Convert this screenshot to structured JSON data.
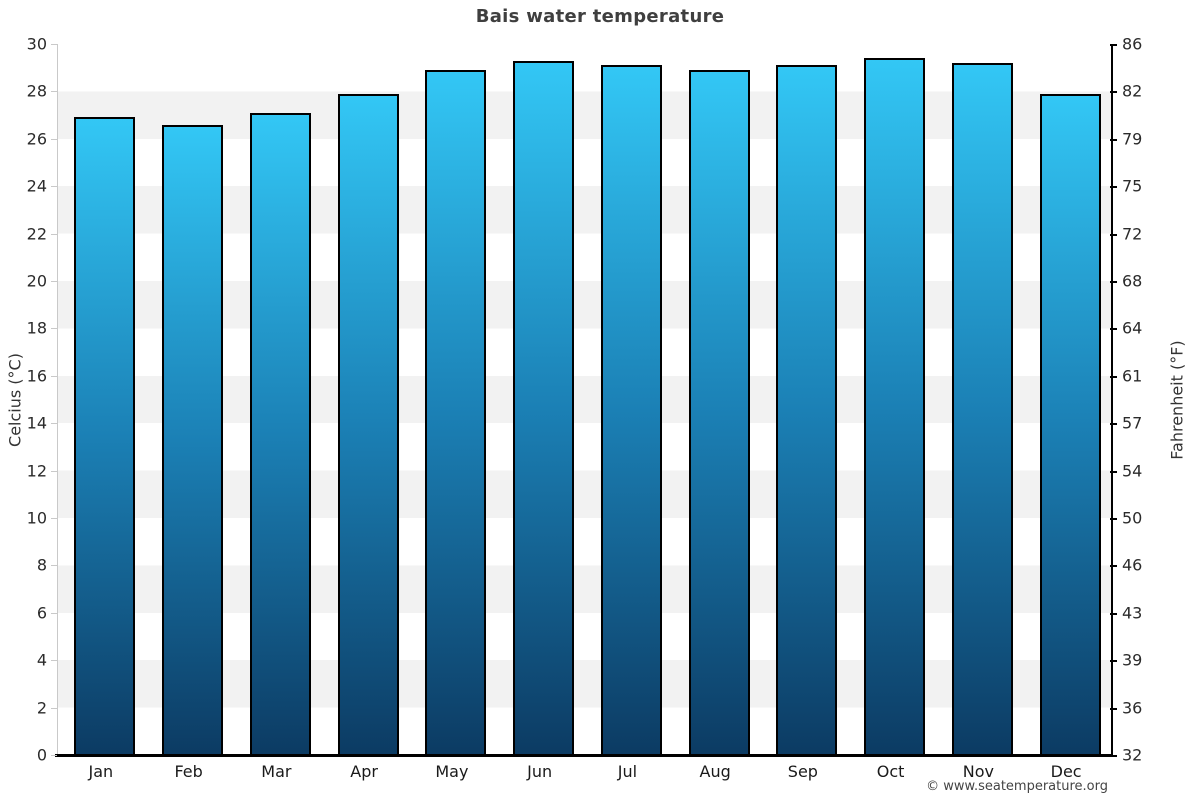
{
  "page": {
    "title": "Bais water temperature",
    "attribution": "© www.seatemperature.org"
  },
  "chart_data": {
    "type": "bar",
    "title": "Bais water temperature",
    "categories": [
      "Jan",
      "Feb",
      "Mar",
      "Apr",
      "May",
      "Jun",
      "Jul",
      "Aug",
      "Sep",
      "Oct",
      "Nov",
      "Dec"
    ],
    "values": [
      26.9,
      26.6,
      27.1,
      27.9,
      28.9,
      29.3,
      29.1,
      28.9,
      29.1,
      29.4,
      29.2,
      27.9
    ],
    "unit": "°C",
    "ylabel_left": "Celcius (°C)",
    "ylabel_right": "Fahrenheit (°F)",
    "ylim": [
      0,
      30
    ],
    "yticks_celsius": [
      0,
      2,
      4,
      6,
      8,
      10,
      12,
      14,
      16,
      18,
      20,
      22,
      24,
      26,
      28,
      30
    ],
    "yticks_fahrenheit": [
      32,
      36,
      39,
      43,
      46,
      50,
      54,
      57,
      61,
      64,
      68,
      72,
      75,
      79,
      82,
      86
    ],
    "grid": "alternating horizontal bands of 2°C, white and light gray",
    "legend": "none",
    "colors": {
      "bar_gradient_top": "#33c7f5",
      "bar_gradient_mid": "#1b80b5",
      "bar_gradient_bottom": "#0c3b63",
      "bar_border": "#000000",
      "band_gray": "#f2f2f2",
      "band_white": "#ffffff",
      "left_axis": "#c9c9c9",
      "right_axis": "#000000",
      "bottom_axis": "#000000",
      "title_color": "#3f3f3f",
      "tick_label_color": "#2b2b2b",
      "attribution_color": "#444444"
    }
  }
}
